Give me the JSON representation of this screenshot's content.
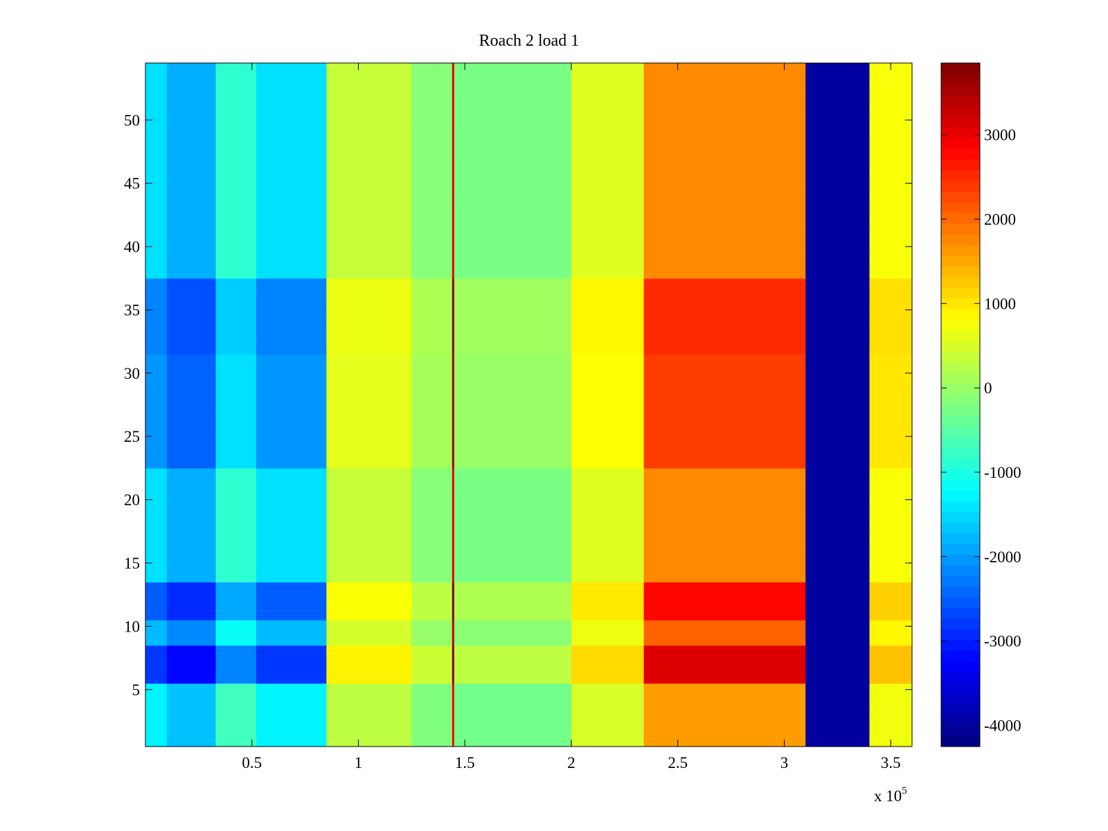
{
  "chart_data": {
    "type": "heatmap",
    "title": "Roach 2 load 1",
    "xlabel": "",
    "ylabel": "",
    "x_exponent_label": "x 10",
    "x_exponent_power": "5",
    "xlim": [
      0,
      3.6
    ],
    "ylim": [
      0.5,
      54.5
    ],
    "x_ticks": [
      0.5,
      1,
      1.5,
      2,
      2.5,
      3,
      3.5
    ],
    "x_tick_labels": [
      "0.5",
      "1",
      "1.5",
      "2",
      "2.5",
      "3",
      "3.5"
    ],
    "y_ticks": [
      5,
      10,
      15,
      20,
      25,
      30,
      35,
      40,
      45,
      50
    ],
    "y_tick_labels": [
      "5",
      "10",
      "15",
      "20",
      "25",
      "30",
      "35",
      "40",
      "45",
      "50"
    ],
    "rows": 54,
    "colorbar": {
      "colormap": "jet",
      "clim": [
        -4250,
        3850
      ],
      "ticks": [
        3000,
        2000,
        1000,
        0,
        -1000,
        -2000,
        -3000,
        -4000
      ],
      "tick_labels": [
        "3000",
        "2000",
        "1000",
        "0",
        "-1000",
        "-2000",
        "-3000",
        "-4000"
      ]
    },
    "column_profile": [
      {
        "x0": 0.0,
        "x1": 0.1,
        "value": -1300
      },
      {
        "x0": 0.1,
        "x1": 0.33,
        "value": -1700
      },
      {
        "x0": 0.33,
        "x1": 0.52,
        "value": -700
      },
      {
        "x0": 0.52,
        "x1": 0.85,
        "value": -1300
      },
      {
        "x0": 0.85,
        "x1": 1.25,
        "value": 300
      },
      {
        "x0": 1.25,
        "x1": 1.44,
        "value": -200
      },
      {
        "x0": 1.44,
        "x1": 1.45,
        "value": 2800
      },
      {
        "x0": 1.45,
        "x1": 2.0,
        "value": -300
      },
      {
        "x0": 2.0,
        "x1": 2.34,
        "value": 500
      },
      {
        "x0": 2.34,
        "x1": 3.1,
        "value": 1600
      },
      {
        "x0": 3.1,
        "x1": 3.4,
        "value": -4000
      },
      {
        "x0": 3.4,
        "x1": 3.6,
        "value": 700
      }
    ],
    "row_profile": [
      {
        "y0": 0.5,
        "y1": 5.5,
        "value": 0
      },
      {
        "y0": 5.5,
        "y1": 8.5,
        "value": 1
      },
      {
        "y0": 8.5,
        "y1": 10.5,
        "value": 0.3
      },
      {
        "y0": 10.5,
        "y1": 13.5,
        "value": 0.8
      },
      {
        "y0": 13.5,
        "y1": 22.5,
        "value": 0.1
      },
      {
        "y0": 22.5,
        "y1": 31.5,
        "value": 0.5
      },
      {
        "y0": 31.5,
        "y1": 37.5,
        "value": 0.6
      },
      {
        "y0": 37.5,
        "y1": 54.5,
        "value": 0.1
      }
    ]
  }
}
